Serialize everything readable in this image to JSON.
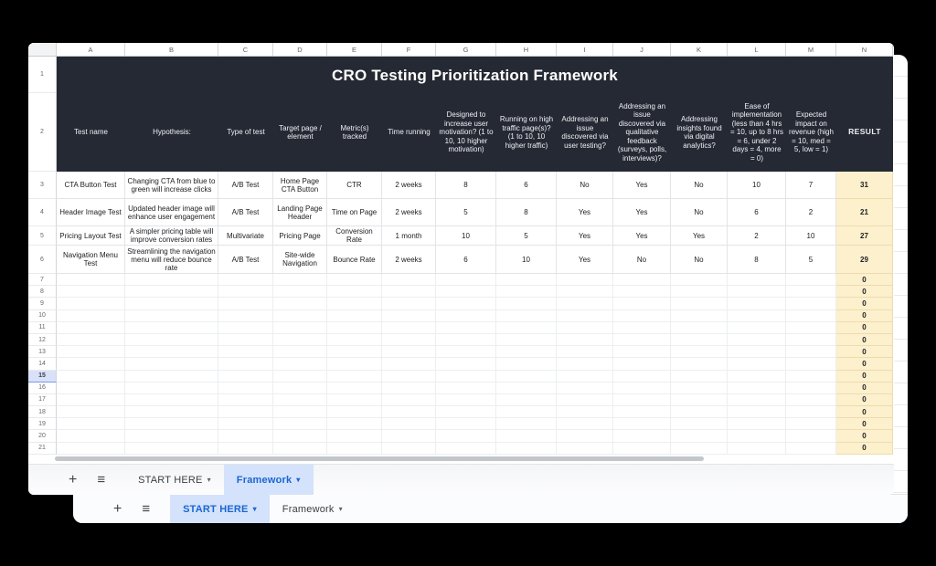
{
  "colors": {
    "table_header_bg": "#252933",
    "result_fill": "#fdf0cd",
    "accent_blue": "#1967d2",
    "active_tab_pill": "#d5e2fb",
    "selected_row_header": "#d9e1f9"
  },
  "icons": {
    "add_sheet": "+",
    "sheet_list": "≡",
    "tab_caret": "▾"
  },
  "sheet": {
    "title": "CRO Testing Prioritization Framework",
    "column_letters": [
      "A",
      "B",
      "C",
      "D",
      "E",
      "F",
      "G",
      "H",
      "I",
      "J",
      "K",
      "L",
      "M",
      "N"
    ],
    "header_labels": [
      "Test name",
      "Hypothesis:",
      "Type of test",
      "Target page / element",
      "Metric(s) tracked",
      "Time running",
      "Designed to increase user motivation? (1 to 10, 10 higher motivation)",
      "Running on high traffic page(s)? (1 to 10, 10 higher traffic)",
      "Addressing an issue discovered via user testing?",
      "Addressing an issue discovered via qualitative feedback (surveys, polls, interviews)?",
      "Addressing insights found via digital analytics?",
      "Ease of implementation\n(less than 4 hrs = 10, up to 8 hrs = 6, under 2 days = 4, more = 0)",
      "Expected impact on revenue (high = 10, med = 5, low = 1)",
      "RESULT"
    ],
    "data_rows": [
      {
        "n": "3",
        "cells": [
          "CTA Button Test",
          "Changing CTA from blue to green will increase clicks",
          "A/B Test",
          "Home Page CTA Button",
          "CTR",
          "2 weeks",
          "8",
          "6",
          "No",
          "Yes",
          "No",
          "10",
          "7",
          "31"
        ]
      },
      {
        "n": "4",
        "cells": [
          "Header Image Test",
          "Updated header image will enhance user engagement",
          "A/B Test",
          "Landing Page Header",
          "Time on Page",
          "2 weeks",
          "5",
          "8",
          "Yes",
          "Yes",
          "No",
          "6",
          "2",
          "21"
        ]
      },
      {
        "n": "5",
        "cells": [
          "Pricing Layout Test",
          "A simpler pricing table will improve conversion rates",
          "Multivariate",
          "Pricing Page",
          "Conversion Rate",
          "1 month",
          "10",
          "5",
          "Yes",
          "Yes",
          "Yes",
          "2",
          "10",
          "27"
        ]
      },
      {
        "n": "6",
        "cells": [
          "Navigation Menu Test",
          "Streamlining the navigation menu will reduce bounce rate",
          "A/B Test",
          "Site-wide Navigation",
          "Bounce Rate",
          "2 weeks",
          "6",
          "10",
          "Yes",
          "No",
          "No",
          "8",
          "5",
          "29"
        ]
      }
    ],
    "empty_row_numbers": [
      "7",
      "8",
      "9",
      "10",
      "11",
      "12",
      "13",
      "14",
      "15",
      "16",
      "17",
      "18",
      "19",
      "20",
      "21"
    ],
    "empty_result_value": "0",
    "selected_row_number": "15",
    "title_row_number": "1",
    "header_row_number": "2"
  },
  "front_tab_bar": {
    "tabs": [
      {
        "label": "START HERE",
        "active": false
      },
      {
        "label": "Framework",
        "active": true
      }
    ]
  },
  "back_tab_bar": {
    "tabs": [
      {
        "label": "START HERE",
        "active": true
      },
      {
        "label": "Framework",
        "active": false
      }
    ]
  }
}
